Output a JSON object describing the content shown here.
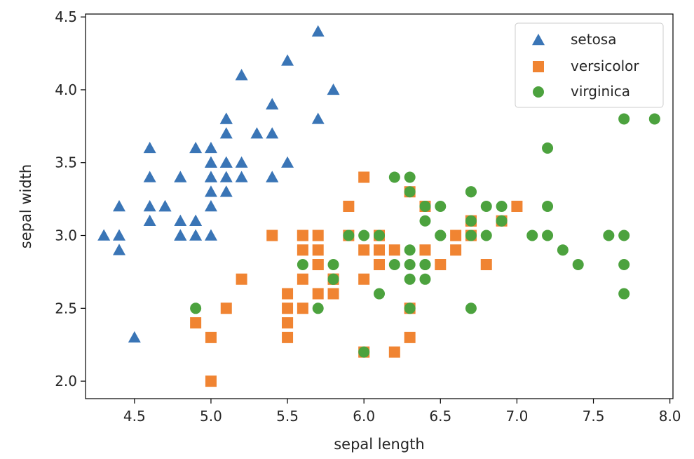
{
  "chart_data": {
    "type": "scatter",
    "title": "",
    "xlabel": "sepal length",
    "ylabel": "sepal width",
    "xlim": [
      4.18,
      8.02
    ],
    "ylim": [
      1.88,
      4.52
    ],
    "xticks": [
      4.5,
      5.0,
      5.5,
      6.0,
      6.5,
      7.0,
      7.5,
      8.0
    ],
    "xtick_labels": [
      "4.5",
      "5.0",
      "5.5",
      "6.0",
      "6.5",
      "7.0",
      "7.5",
      "8.0"
    ],
    "yticks": [
      2.0,
      2.5,
      3.0,
      3.5,
      4.0,
      4.5
    ],
    "ytick_labels": [
      "2.0",
      "2.5",
      "3.0",
      "3.5",
      "4.0",
      "4.5"
    ],
    "legend_position": "top-right",
    "series": [
      {
        "name": "setosa",
        "marker": "triangle",
        "color": "#3a75b6",
        "points": [
          [
            5.1,
            3.5
          ],
          [
            4.9,
            3.0
          ],
          [
            4.7,
            3.2
          ],
          [
            4.6,
            3.1
          ],
          [
            5.0,
            3.6
          ],
          [
            5.4,
            3.9
          ],
          [
            4.6,
            3.4
          ],
          [
            5.0,
            3.4
          ],
          [
            4.4,
            2.9
          ],
          [
            4.9,
            3.1
          ],
          [
            5.4,
            3.7
          ],
          [
            4.8,
            3.4
          ],
          [
            4.8,
            3.0
          ],
          [
            4.3,
            3.0
          ],
          [
            5.8,
            4.0
          ],
          [
            5.7,
            4.4
          ],
          [
            5.4,
            3.9
          ],
          [
            5.1,
            3.5
          ],
          [
            5.7,
            3.8
          ],
          [
            5.1,
            3.8
          ],
          [
            5.4,
            3.4
          ],
          [
            5.1,
            3.7
          ],
          [
            4.6,
            3.6
          ],
          [
            5.1,
            3.3
          ],
          [
            4.8,
            3.4
          ],
          [
            5.0,
            3.0
          ],
          [
            5.0,
            3.4
          ],
          [
            5.2,
            3.5
          ],
          [
            5.2,
            3.4
          ],
          [
            4.7,
            3.2
          ],
          [
            4.8,
            3.1
          ],
          [
            5.4,
            3.4
          ],
          [
            5.2,
            4.1
          ],
          [
            5.5,
            4.2
          ],
          [
            4.9,
            3.1
          ],
          [
            5.0,
            3.2
          ],
          [
            5.5,
            3.5
          ],
          [
            4.9,
            3.6
          ],
          [
            4.4,
            3.0
          ],
          [
            5.1,
            3.4
          ],
          [
            5.0,
            3.5
          ],
          [
            4.5,
            2.3
          ],
          [
            4.4,
            3.2
          ],
          [
            5.0,
            3.5
          ],
          [
            5.1,
            3.8
          ],
          [
            4.8,
            3.0
          ],
          [
            5.1,
            3.8
          ],
          [
            4.6,
            3.2
          ],
          [
            5.3,
            3.7
          ],
          [
            5.0,
            3.3
          ]
        ]
      },
      {
        "name": "versicolor",
        "marker": "square",
        "color": "#f08432",
        "points": [
          [
            7.0,
            3.2
          ],
          [
            6.4,
            3.2
          ],
          [
            6.9,
            3.1
          ],
          [
            5.5,
            2.3
          ],
          [
            6.5,
            2.8
          ],
          [
            5.7,
            2.8
          ],
          [
            6.3,
            3.3
          ],
          [
            4.9,
            2.4
          ],
          [
            6.6,
            2.9
          ],
          [
            5.2,
            2.7
          ],
          [
            5.0,
            2.0
          ],
          [
            5.9,
            3.0
          ],
          [
            6.0,
            2.2
          ],
          [
            6.1,
            2.9
          ],
          [
            5.6,
            2.9
          ],
          [
            6.7,
            3.1
          ],
          [
            5.6,
            3.0
          ],
          [
            5.8,
            2.7
          ],
          [
            6.2,
            2.2
          ],
          [
            5.6,
            2.5
          ],
          [
            5.9,
            3.2
          ],
          [
            6.1,
            2.8
          ],
          [
            6.3,
            2.5
          ],
          [
            6.1,
            2.8
          ],
          [
            6.4,
            2.9
          ],
          [
            6.6,
            3.0
          ],
          [
            6.8,
            2.8
          ],
          [
            6.7,
            3.0
          ],
          [
            6.0,
            2.9
          ],
          [
            5.7,
            2.6
          ],
          [
            5.5,
            2.4
          ],
          [
            5.5,
            2.4
          ],
          [
            5.8,
            2.7
          ],
          [
            6.0,
            2.7
          ],
          [
            5.4,
            3.0
          ],
          [
            6.0,
            3.4
          ],
          [
            6.7,
            3.1
          ],
          [
            6.3,
            2.3
          ],
          [
            5.6,
            3.0
          ],
          [
            5.5,
            2.5
          ],
          [
            5.5,
            2.6
          ],
          [
            6.1,
            3.0
          ],
          [
            5.8,
            2.6
          ],
          [
            5.0,
            2.3
          ],
          [
            5.6,
            2.7
          ],
          [
            5.7,
            3.0
          ],
          [
            5.7,
            2.9
          ],
          [
            6.2,
            2.9
          ],
          [
            5.1,
            2.5
          ],
          [
            5.7,
            2.8
          ]
        ]
      },
      {
        "name": "virginica",
        "marker": "circle",
        "color": "#4ca23e",
        "points": [
          [
            6.3,
            3.3
          ],
          [
            5.8,
            2.7
          ],
          [
            7.1,
            3.0
          ],
          [
            6.3,
            2.9
          ],
          [
            6.5,
            3.0
          ],
          [
            7.6,
            3.0
          ],
          [
            4.9,
            2.5
          ],
          [
            7.3,
            2.9
          ],
          [
            6.7,
            2.5
          ],
          [
            7.2,
            3.6
          ],
          [
            6.5,
            3.2
          ],
          [
            6.4,
            2.7
          ],
          [
            6.8,
            3.0
          ],
          [
            5.7,
            2.5
          ],
          [
            5.8,
            2.8
          ],
          [
            6.4,
            3.2
          ],
          [
            6.5,
            3.0
          ],
          [
            7.7,
            3.8
          ],
          [
            7.7,
            2.6
          ],
          [
            6.0,
            2.2
          ],
          [
            6.9,
            3.2
          ],
          [
            5.6,
            2.8
          ],
          [
            7.7,
            2.8
          ],
          [
            6.3,
            2.7
          ],
          [
            6.7,
            3.3
          ],
          [
            7.2,
            3.2
          ],
          [
            6.2,
            2.8
          ],
          [
            6.1,
            3.0
          ],
          [
            6.4,
            2.8
          ],
          [
            7.2,
            3.0
          ],
          [
            7.4,
            2.8
          ],
          [
            7.9,
            3.8
          ],
          [
            6.4,
            2.8
          ],
          [
            6.3,
            2.8
          ],
          [
            6.1,
            2.6
          ],
          [
            7.7,
            3.0
          ],
          [
            6.3,
            3.4
          ],
          [
            6.4,
            3.1
          ],
          [
            6.0,
            3.0
          ],
          [
            6.9,
            3.1
          ],
          [
            6.7,
            3.1
          ],
          [
            6.9,
            3.1
          ],
          [
            5.8,
            2.7
          ],
          [
            6.8,
            3.2
          ],
          [
            6.7,
            3.3
          ],
          [
            6.7,
            3.0
          ],
          [
            6.3,
            2.5
          ],
          [
            6.5,
            3.0
          ],
          [
            6.2,
            3.4
          ],
          [
            5.9,
            3.0
          ]
        ]
      }
    ]
  }
}
